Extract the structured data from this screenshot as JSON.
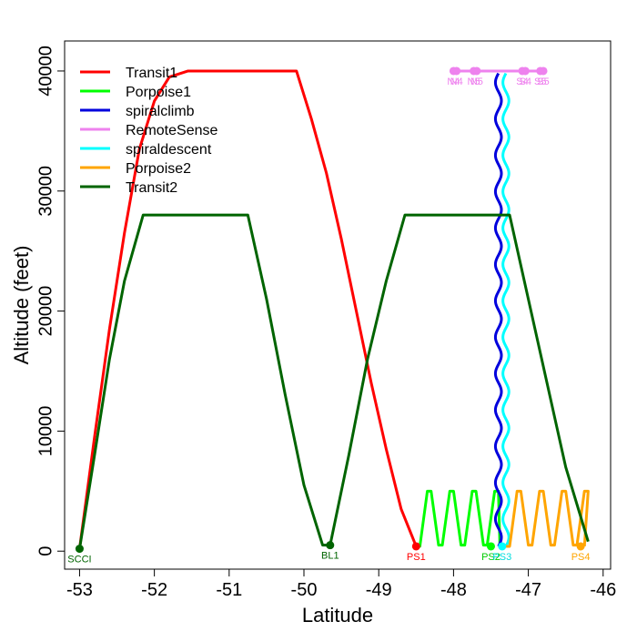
{
  "chart_data": {
    "type": "line",
    "title": "",
    "xlabel": "Latitude",
    "ylabel": "Altitude (feet)",
    "xlim": [
      -53.2,
      -45.9
    ],
    "ylim": [
      -1500,
      42500
    ],
    "x_ticks": [
      -53,
      -52,
      -51,
      -50,
      -49,
      -48,
      -47,
      -46
    ],
    "x_tick_labels": [
      "-53",
      "-52",
      "-51",
      "-50",
      "-49",
      "-48",
      "-47",
      "-46"
    ],
    "y_ticks": [
      0,
      10000,
      20000,
      30000,
      40000
    ],
    "y_tick_labels": [
      "0",
      "10000",
      "20000",
      "30000",
      "40000"
    ],
    "grid": false,
    "legend_position": "top-left",
    "series": [
      {
        "name": "Transit1",
        "color": "#ff0000",
        "points": [
          [
            -53.0,
            200
          ],
          [
            -52.8,
            9500
          ],
          [
            -52.6,
            18500
          ],
          [
            -52.4,
            26500
          ],
          [
            -52.2,
            33500
          ],
          [
            -52.0,
            37500
          ],
          [
            -51.8,
            39500
          ],
          [
            -51.55,
            40000
          ],
          [
            -50.1,
            40000
          ],
          [
            -49.9,
            36000
          ],
          [
            -49.7,
            31500
          ],
          [
            -49.5,
            26000
          ],
          [
            -49.3,
            20000
          ],
          [
            -49.1,
            14000
          ],
          [
            -48.9,
            8500
          ],
          [
            -48.7,
            3500
          ],
          [
            -48.5,
            400
          ]
        ]
      },
      {
        "name": "Porpoise1",
        "color": "#00ff00",
        "points": [
          [
            -48.5,
            400
          ],
          [
            -48.45,
            400
          ],
          [
            -48.35,
            5000
          ],
          [
            -48.3,
            5000
          ],
          [
            -48.2,
            500
          ],
          [
            -48.15,
            500
          ],
          [
            -48.05,
            5000
          ],
          [
            -48.0,
            5000
          ],
          [
            -47.9,
            500
          ],
          [
            -47.85,
            500
          ],
          [
            -47.75,
            5000
          ],
          [
            -47.7,
            5000
          ],
          [
            -47.6,
            500
          ],
          [
            -47.55,
            500
          ],
          [
            -47.45,
            5000
          ],
          [
            -47.4,
            5000
          ],
          [
            -47.38,
            400
          ]
        ]
      },
      {
        "name": "spiralclimb",
        "color": "#0000dd",
        "wave": {
          "center": -47.4,
          "amplitude": 0.04,
          "y_start": 400,
          "y_end": 39800,
          "cycles": 13
        }
      },
      {
        "name": "RemoteSense",
        "color": "#ee82ee",
        "points": [
          [
            -48.0,
            40000
          ],
          [
            -47.05,
            40000
          ],
          [
            -46.8,
            40000
          ]
        ]
      },
      {
        "name": "spiraldescent",
        "color": "#00ffff",
        "wave": {
          "center": -47.3,
          "amplitude": 0.04,
          "y_start": 39800,
          "y_end": 400,
          "cycles": 13,
          "phase": 3.14159
        }
      },
      {
        "name": "Porpoise2",
        "color": "#ffa500",
        "points": [
          [
            -47.3,
            400
          ],
          [
            -47.25,
            400
          ],
          [
            -47.15,
            5000
          ],
          [
            -47.1,
            5000
          ],
          [
            -47.0,
            500
          ],
          [
            -46.95,
            500
          ],
          [
            -46.85,
            5000
          ],
          [
            -46.8,
            5000
          ],
          [
            -46.7,
            500
          ],
          [
            -46.65,
            500
          ],
          [
            -46.55,
            5000
          ],
          [
            -46.5,
            5000
          ],
          [
            -46.4,
            500
          ],
          [
            -46.35,
            500
          ],
          [
            -46.25,
            5000
          ],
          [
            -46.2,
            5000
          ],
          [
            -46.25,
            400
          ]
        ]
      },
      {
        "name": "Transit2",
        "color": "#006400",
        "points": [
          [
            -53.0,
            200
          ],
          [
            -52.8,
            8000
          ],
          [
            -52.6,
            16000
          ],
          [
            -52.4,
            22500
          ],
          [
            -52.15,
            28000
          ],
          [
            -50.75,
            28000
          ],
          [
            -50.5,
            21000
          ],
          [
            -50.25,
            13000
          ],
          [
            -50.0,
            5500
          ],
          [
            -49.75,
            500
          ],
          [
            -49.65,
            500
          ],
          [
            -49.4,
            8000
          ],
          [
            -49.15,
            16000
          ],
          [
            -48.9,
            22500
          ],
          [
            -48.65,
            28000
          ],
          [
            -47.25,
            28000
          ],
          [
            -47.0,
            21000
          ],
          [
            -46.75,
            14000
          ],
          [
            -46.5,
            7000
          ],
          [
            -46.2,
            800
          ]
        ]
      }
    ],
    "point_markers": [
      {
        "label": "SCCI",
        "x": -53.0,
        "y": 200,
        "color": "#006400",
        "label_color": "#006400"
      },
      {
        "label": "BL1",
        "x": -49.65,
        "y": 500,
        "color": "#006400",
        "label_color": "#006400"
      },
      {
        "label": "PS1",
        "x": -48.5,
        "y": 400,
        "color": "#ff0000",
        "label_color": "#ff0000"
      },
      {
        "label": "PS2",
        "x": -47.5,
        "y": 400,
        "color": "#00ff00",
        "label_color": "#00cc00"
      },
      {
        "label": "PS3",
        "x": -47.35,
        "y": 400,
        "color": "#00ffff",
        "label_color": "#00dddd"
      },
      {
        "label": "PS4",
        "x": -46.3,
        "y": 400,
        "color": "#ffa500",
        "label_color": "#ffa500"
      },
      {
        "label": "N4",
        "x": -48.0,
        "y": 40000,
        "color": "#ee82ee",
        "label_color": "#ee82ee"
      },
      {
        "label": "N4",
        "x": -47.96,
        "y": 40000,
        "color": "#ee82ee",
        "label_color": "#ee82ee"
      },
      {
        "label": "N5",
        "x": -47.73,
        "y": 40000,
        "color": "#ee82ee",
        "label_color": "#ee82ee"
      },
      {
        "label": "N5",
        "x": -47.69,
        "y": 40000,
        "color": "#ee82ee",
        "label_color": "#ee82ee"
      },
      {
        "label": "S4",
        "x": -47.08,
        "y": 40000,
        "color": "#ee82ee",
        "label_color": "#ee82ee"
      },
      {
        "label": "S4",
        "x": -47.04,
        "y": 40000,
        "color": "#ee82ee",
        "label_color": "#ee82ee"
      },
      {
        "label": "S5",
        "x": -46.84,
        "y": 40000,
        "color": "#ee82ee",
        "label_color": "#ee82ee"
      },
      {
        "label": "S5",
        "x": -46.8,
        "y": 40000,
        "color": "#ee82ee",
        "label_color": "#ee82ee"
      }
    ]
  }
}
